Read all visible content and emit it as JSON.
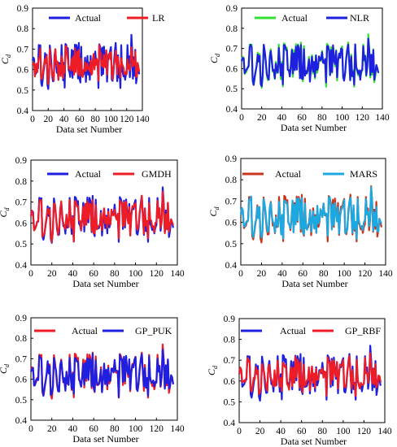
{
  "chart_data": [
    {
      "type": "line",
      "xlabel": "Data set Number",
      "ylabel": "Cd",
      "xlim": [
        0,
        140
      ],
      "ylim": [
        0.4,
        0.9
      ],
      "xticks": [
        0,
        20,
        40,
        60,
        80,
        100,
        120,
        140
      ],
      "yticks": [
        0.4,
        0.5,
        0.6,
        0.7,
        0.8,
        0.9
      ],
      "legend": "top",
      "series": [
        {
          "name": "Actual",
          "color": "#1f1fe0",
          "role": "actual"
        },
        {
          "name": "LR",
          "color": "#ee1c25",
          "role": "model",
          "k": 0.6,
          "seed": 11,
          "noise": 0.035
        }
      ]
    },
    {
      "type": "line",
      "xlabel": "Data set Number",
      "ylabel": "Cd",
      "xlim": [
        0,
        140
      ],
      "ylim": [
        0.4,
        0.9
      ],
      "xticks": [
        0,
        20,
        40,
        60,
        80,
        100,
        120,
        140
      ],
      "yticks": [
        0.4,
        0.5,
        0.6,
        0.7,
        0.8,
        0.9
      ],
      "legend": "top",
      "series": [
        {
          "name": "Actual",
          "color": "#33e033",
          "role": "actual"
        },
        {
          "name": "NLR",
          "color": "#1f1fe0",
          "role": "model",
          "k": 0.92,
          "seed": 23,
          "noise": 0.012
        }
      ]
    },
    {
      "type": "line",
      "xlabel": "Data set Number",
      "ylabel": "Cd",
      "xlim": [
        0,
        140
      ],
      "ylim": [
        0.4,
        0.9
      ],
      "xticks": [
        0,
        20,
        40,
        60,
        80,
        100,
        120,
        140
      ],
      "yticks": [
        0.4,
        0.5,
        0.6,
        0.7,
        0.8,
        0.9
      ],
      "legend": "top",
      "series": [
        {
          "name": "Actual",
          "color": "#1f1fe0",
          "role": "actual"
        },
        {
          "name": "GMDH",
          "color": "#ee1c25",
          "role": "model",
          "k": 0.85,
          "seed": 37,
          "noise": 0.018
        }
      ]
    },
    {
      "type": "line",
      "xlabel": "Data set Number",
      "ylabel": "Cd",
      "xlim": [
        0,
        140
      ],
      "ylim": [
        0.4,
        0.9
      ],
      "xticks": [
        0,
        20,
        40,
        60,
        80,
        100,
        120,
        140
      ],
      "yticks": [
        0.4,
        0.5,
        0.6,
        0.7,
        0.8,
        0.9
      ],
      "legend": "top",
      "series": [
        {
          "name": "Actual",
          "color": "#c8361e",
          "role": "actual"
        },
        {
          "name": "MARS",
          "color": "#1ca8e0",
          "role": "model",
          "k": 0.88,
          "seed": 51,
          "noise": 0.016
        }
      ]
    },
    {
      "type": "line",
      "xlabel": "Data set Number",
      "ylabel": "Cd",
      "xlim": [
        0,
        140
      ],
      "ylim": [
        0.4,
        0.9
      ],
      "xticks": [
        0,
        20,
        40,
        60,
        80,
        100,
        120,
        140
      ],
      "yticks": [
        0.4,
        0.5,
        0.6,
        0.7,
        0.8,
        0.9
      ],
      "legend": "top",
      "series": [
        {
          "name": "Actual",
          "color": "#ee1c25",
          "role": "actual"
        },
        {
          "name": "GP_PUK",
          "color": "#1f1fe0",
          "role": "model",
          "k": 0.9,
          "seed": 67,
          "noise": 0.014
        }
      ]
    },
    {
      "type": "line",
      "xlabel": "Data set Number",
      "ylabel": "Cd",
      "xlim": [
        0,
        140
      ],
      "ylim": [
        0.4,
        0.9
      ],
      "xticks": [
        0,
        20,
        40,
        60,
        80,
        100,
        120,
        140
      ],
      "yticks": [
        0.4,
        0.5,
        0.6,
        0.7,
        0.8,
        0.9
      ],
      "legend": "top",
      "series": [
        {
          "name": "Actual",
          "color": "#1f1fe0",
          "role": "actual"
        },
        {
          "name": "GP_RBF",
          "color": "#ee1c25",
          "role": "model",
          "k": 0.8,
          "seed": 83,
          "noise": 0.02
        }
      ]
    }
  ]
}
